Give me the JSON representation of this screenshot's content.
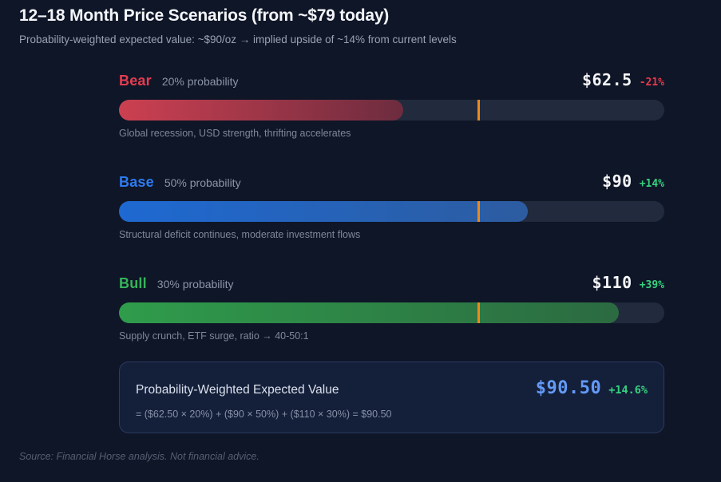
{
  "header": {
    "title": "12–18 Month Price Scenarios (from ~$79 today)",
    "subtitle": "Probability-weighted expected value: ~$90/oz → implied upside of ~14% from current levels"
  },
  "chart_data": {
    "type": "bar",
    "orientation": "horizontal",
    "xlim": [
      0,
      120
    ],
    "current_price": 79,
    "current_price_marker_pct": 65.8,
    "marker_color": "#ec8a1c",
    "categories": [
      "Bear",
      "Base",
      "Bull"
    ],
    "values": [
      62.5,
      90,
      110
    ],
    "probabilities_pct": [
      20,
      50,
      30
    ],
    "changes_pct": [
      -21,
      14,
      39
    ],
    "scenarios": [
      {
        "name": "Bear",
        "name_color": "#e63c50",
        "probability": "20% probability",
        "price": "$62.5",
        "price_value": 62.5,
        "change": "-21%",
        "change_color": "#e8394e",
        "fill_pct": 52.1,
        "color_start": "#cc4051",
        "color_end": "#6d2c3f",
        "description": "Global recession, USD strength, thrifting accelerates"
      },
      {
        "name": "Base",
        "name_color": "#2e7bf2",
        "probability": "50% probability",
        "price": "$90",
        "price_value": 90,
        "change": "+14%",
        "change_color": "#36d27f",
        "fill_pct": 75,
        "color_start": "#1e69d2",
        "color_end": "#2d5ca0",
        "description": "Structural deficit continues, moderate investment flows"
      },
      {
        "name": "Bull",
        "name_color": "#36b35a",
        "probability": "30% probability",
        "price": "$110",
        "price_value": 110,
        "change": "+39%",
        "change_color": "#36d27f",
        "fill_pct": 91.7,
        "color_start": "#2f9c4b",
        "color_end": "#2c6a41",
        "description": "Supply crunch, ETF surge, ratio → 40-50:1"
      }
    ]
  },
  "summary": {
    "label": "Probability-Weighted Expected Value",
    "value": "$90.50",
    "change": "+14.6%",
    "formula": "= ($62.50 × 20%) + ($90 × 50%) + ($110 × 30%) = $90.50"
  },
  "footer": {
    "source": "Source: Financial Horse analysis. Not financial advice."
  }
}
